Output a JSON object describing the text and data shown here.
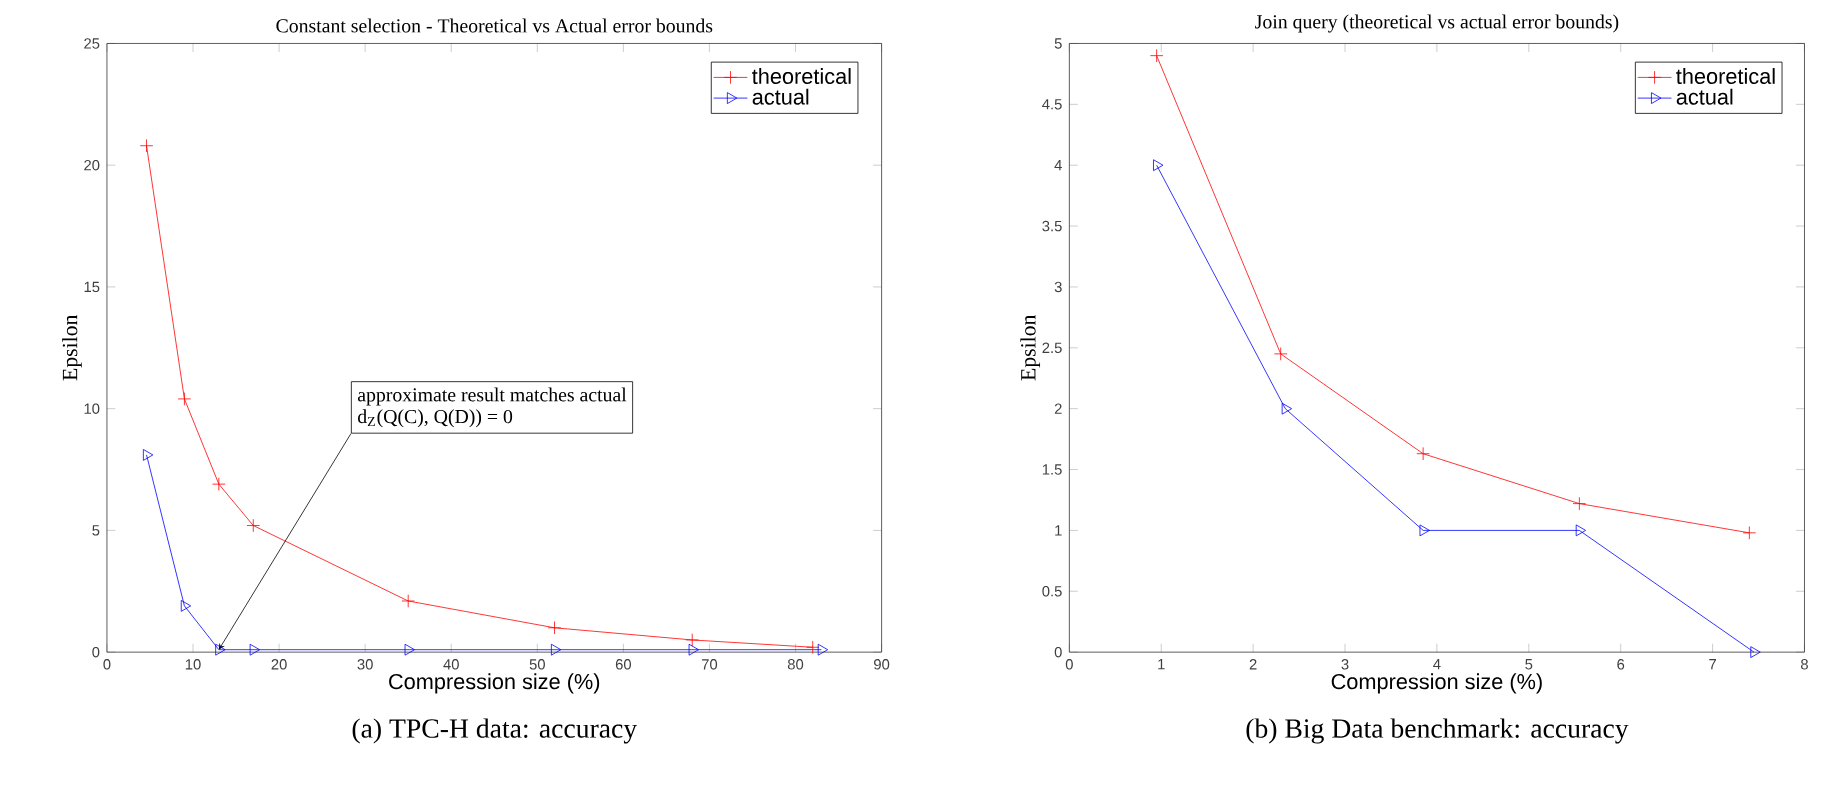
{
  "chart_data": [
    {
      "type": "line",
      "title": "Constant selection - Theoretical vs Actual error bounds",
      "xlabel": "Compression size (%)",
      "ylabel": "Epsilon",
      "xlim": [
        0,
        90
      ],
      "xticks": [
        0,
        10,
        20,
        30,
        40,
        50,
        60,
        70,
        80,
        90
      ],
      "ylim": [
        0,
        25
      ],
      "yticks": [
        0,
        5,
        10,
        15,
        20,
        25
      ],
      "legend": "top right",
      "grid": false,
      "series": [
        {
          "name": "theoretical",
          "color": "#ff0000",
          "marker": "cross",
          "x": [
            4.6,
            9,
            13,
            17,
            35,
            52,
            68,
            82
          ],
          "values": [
            20.8,
            10.4,
            6.9,
            5.2,
            2.1,
            1.0,
            0.5,
            0.2
          ]
        },
        {
          "name": "actual",
          "color": "#0000ff",
          "marker": "triangle",
          "x": [
            4.6,
            9,
            13,
            17,
            35,
            52,
            68,
            83
          ],
          "values": [
            8.1,
            1.9,
            0.1,
            0.1,
            0.1,
            0.1,
            0.1,
            0.1
          ]
        }
      ],
      "annotations": [
        "approximate result matches actual",
        {
          "text": "d$_{Z}$(Q(C), Q(D)) = 0",
          "x": 13,
          "y": 0.1
        },
        "(a) TPC-H data: accuracy"
      ]
    },
    {
      "type": "line",
      "title": "Join query (theoretical vs actual error bounds)",
      "xlabel": "Compression size (%)",
      "ylabel": "Epsilon",
      "xlim": [
        0,
        8
      ],
      "xticks": [
        0,
        1,
        2,
        3,
        4,
        5,
        6,
        7,
        8
      ],
      "ylim": [
        0,
        5
      ],
      "yticks": [
        0,
        0.5,
        1,
        1.5,
        2,
        2.5,
        3,
        3.5,
        4,
        4.5,
        5
      ],
      "legend": "top right",
      "grid": false,
      "series": [
        {
          "name": "theoretical",
          "color": "#ff0000",
          "marker": "cross",
          "x": [
            0.95,
            2.3,
            3.85,
            5.55,
            7.4
          ],
          "values": [
            4.9,
            2.45,
            1.63,
            1.22,
            0.98
          ]
        },
        {
          "name": "actual",
          "color": "#0000ff",
          "marker": "triangle",
          "x": [
            0.95,
            2.35,
            3.85,
            5.55,
            7.45
          ],
          "values": [
            4.0,
            2.0,
            1.0,
            1.0,
            0.0
          ]
        }
      ],
      "annotations": [
        "(b) Big Data benchmark: accuracy"
      ]
    }
  ]
}
